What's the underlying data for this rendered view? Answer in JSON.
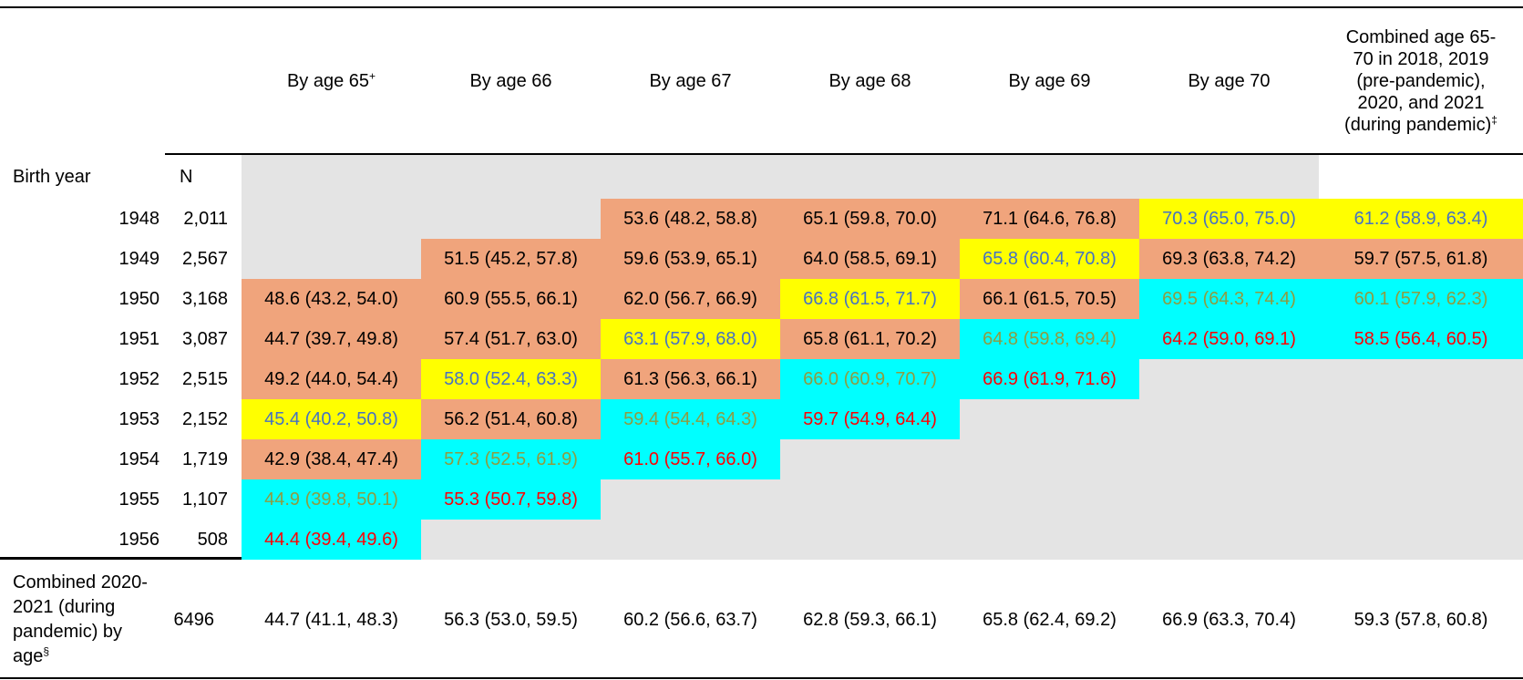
{
  "colors": {
    "cell_orange": "#F0A47C",
    "cell_yellow": "#FFFF00",
    "cell_cyan": "#00FFFF",
    "cell_gray": "#E4E4E4",
    "text_blue": "#4472C4",
    "text_olive": "#8F9B41",
    "text_red": "#FF0000",
    "text_black": "#000000",
    "rule_black": "#000000"
  },
  "chart_data": {
    "type": "table",
    "row_axis_label": "Birth year",
    "n_header": "N",
    "age_columns": [
      {
        "label": "By age 65",
        "sup": "+"
      },
      {
        "label": "By age 66",
        "sup": ""
      },
      {
        "label": "By age 67",
        "sup": ""
      },
      {
        "label": "By age 68",
        "sup": ""
      },
      {
        "label": "By age 69",
        "sup": ""
      },
      {
        "label": "By age 70",
        "sup": ""
      }
    ],
    "combined_column": {
      "lines": [
        "Combined age 65-",
        "70 in 2018, 2019",
        "(pre-pandemic),",
        "2020, and 2021",
        "(during pandemic)"
      ],
      "sup": "‡"
    },
    "rows": [
      {
        "year": "1948",
        "n": "2,011",
        "cells": [
          {
            "text": "",
            "bg": "gray",
            "fg": "black"
          },
          {
            "text": "",
            "bg": "gray",
            "fg": "black"
          },
          {
            "text": "53.6 (48.2, 58.8)",
            "bg": "orange",
            "fg": "black"
          },
          {
            "text": "65.1 (59.8, 70.0)",
            "bg": "orange",
            "fg": "black"
          },
          {
            "text": "71.1 (64.6, 76.8)",
            "bg": "orange",
            "fg": "black"
          },
          {
            "text": "70.3 (65.0, 75.0)",
            "bg": "yellow",
            "fg": "blue"
          },
          {
            "text": "61.2 (58.9, 63.4)",
            "bg": "yellow",
            "fg": "blue"
          }
        ]
      },
      {
        "year": "1949",
        "n": "2,567",
        "cells": [
          {
            "text": "",
            "bg": "gray",
            "fg": "black"
          },
          {
            "text": "51.5 (45.2, 57.8)",
            "bg": "orange",
            "fg": "black"
          },
          {
            "text": "59.6 (53.9, 65.1)",
            "bg": "orange",
            "fg": "black"
          },
          {
            "text": "64.0 (58.5, 69.1)",
            "bg": "orange",
            "fg": "black"
          },
          {
            "text": "65.8 (60.4, 70.8)",
            "bg": "yellow",
            "fg": "blue"
          },
          {
            "text": "69.3 (63.8, 74.2)",
            "bg": "orange",
            "fg": "black"
          },
          {
            "text": "59.7 (57.5, 61.8)",
            "bg": "orange",
            "fg": "black"
          }
        ]
      },
      {
        "year": "1950",
        "n": "3,168",
        "cells": [
          {
            "text": "48.6 (43.2, 54.0)",
            "bg": "orange",
            "fg": "black"
          },
          {
            "text": "60.9 (55.5, 66.1)",
            "bg": "orange",
            "fg": "black"
          },
          {
            "text": "62.0 (56.7, 66.9)",
            "bg": "orange",
            "fg": "black"
          },
          {
            "text": "66.8 (61.5, 71.7)",
            "bg": "yellow",
            "fg": "blue"
          },
          {
            "text": "66.1 (61.5, 70.5)",
            "bg": "orange",
            "fg": "black"
          },
          {
            "text": "69.5 (64.3, 74.4)",
            "bg": "cyan",
            "fg": "olive"
          },
          {
            "text": "60.1 (57.9, 62.3)",
            "bg": "cyan",
            "fg": "olive"
          }
        ]
      },
      {
        "year": "1951",
        "n": "3,087",
        "cells": [
          {
            "text": "44.7 (39.7, 49.8)",
            "bg": "orange",
            "fg": "black"
          },
          {
            "text": "57.4 (51.7, 63.0)",
            "bg": "orange",
            "fg": "black"
          },
          {
            "text": "63.1 (57.9, 68.0)",
            "bg": "yellow",
            "fg": "blue"
          },
          {
            "text": "65.8 (61.1, 70.2)",
            "bg": "orange",
            "fg": "black"
          },
          {
            "text": "64.8 (59.8, 69.4)",
            "bg": "cyan",
            "fg": "olive"
          },
          {
            "text": "64.2 (59.0, 69.1)",
            "bg": "cyan",
            "fg": "red"
          },
          {
            "text": "58.5 (56.4, 60.5)",
            "bg": "cyan",
            "fg": "red"
          }
        ]
      },
      {
        "year": "1952",
        "n": "2,515",
        "cells": [
          {
            "text": "49.2 (44.0, 54.4)",
            "bg": "orange",
            "fg": "black"
          },
          {
            "text": "58.0 (52.4, 63.3)",
            "bg": "yellow",
            "fg": "blue"
          },
          {
            "text": "61.3 (56.3, 66.1)",
            "bg": "orange",
            "fg": "black"
          },
          {
            "text": "66.0 (60.9, 70.7)",
            "bg": "cyan",
            "fg": "olive"
          },
          {
            "text": "66.9 (61.9, 71.6)",
            "bg": "cyan",
            "fg": "red"
          },
          {
            "text": "",
            "bg": "gray",
            "fg": "black"
          },
          {
            "text": "",
            "bg": "gray",
            "fg": "black"
          }
        ]
      },
      {
        "year": "1953",
        "n": "2,152",
        "cells": [
          {
            "text": "45.4 (40.2, 50.8)",
            "bg": "yellow",
            "fg": "blue"
          },
          {
            "text": "56.2 (51.4, 60.8)",
            "bg": "orange",
            "fg": "black"
          },
          {
            "text": "59.4 (54.4, 64.3)",
            "bg": "cyan",
            "fg": "olive"
          },
          {
            "text": "59.7 (54.9, 64.4)",
            "bg": "cyan",
            "fg": "red"
          },
          {
            "text": "",
            "bg": "gray",
            "fg": "black"
          },
          {
            "text": "",
            "bg": "gray",
            "fg": "black"
          },
          {
            "text": "",
            "bg": "gray",
            "fg": "black"
          }
        ]
      },
      {
        "year": "1954",
        "n": "1,719",
        "cells": [
          {
            "text": "42.9 (38.4, 47.4)",
            "bg": "orange",
            "fg": "black"
          },
          {
            "text": "57.3 (52.5, 61.9)",
            "bg": "cyan",
            "fg": "olive"
          },
          {
            "text": "61.0 (55.7, 66.0)",
            "bg": "cyan",
            "fg": "red"
          },
          {
            "text": "",
            "bg": "gray",
            "fg": "black"
          },
          {
            "text": "",
            "bg": "gray",
            "fg": "black"
          },
          {
            "text": "",
            "bg": "gray",
            "fg": "black"
          },
          {
            "text": "",
            "bg": "gray",
            "fg": "black"
          }
        ]
      },
      {
        "year": "1955",
        "n": "1,107",
        "cells": [
          {
            "text": "44.9 (39.8, 50.1)",
            "bg": "cyan",
            "fg": "olive"
          },
          {
            "text": "55.3 (50.7, 59.8)",
            "bg": "cyan",
            "fg": "red"
          },
          {
            "text": "",
            "bg": "gray",
            "fg": "black"
          },
          {
            "text": "",
            "bg": "gray",
            "fg": "black"
          },
          {
            "text": "",
            "bg": "gray",
            "fg": "black"
          },
          {
            "text": "",
            "bg": "gray",
            "fg": "black"
          },
          {
            "text": "",
            "bg": "gray",
            "fg": "black"
          }
        ]
      },
      {
        "year": "1956",
        "n": "508",
        "cells": [
          {
            "text": "44.4 (39.4, 49.6)",
            "bg": "cyan",
            "fg": "red"
          },
          {
            "text": "",
            "bg": "gray",
            "fg": "black"
          },
          {
            "text": "",
            "bg": "gray",
            "fg": "black"
          },
          {
            "text": "",
            "bg": "gray",
            "fg": "black"
          },
          {
            "text": "",
            "bg": "gray",
            "fg": "black"
          },
          {
            "text": "",
            "bg": "gray",
            "fg": "black"
          },
          {
            "text": "",
            "bg": "gray",
            "fg": "black"
          }
        ]
      }
    ],
    "footer": {
      "label_lines": [
        "Combined 2020-",
        "2021 (during",
        "pandemic) by",
        "age"
      ],
      "label_sup": "§",
      "n": "6496",
      "cells": [
        {
          "text": "44.7 (41.1, 48.3)",
          "bg": "white",
          "fg": "black"
        },
        {
          "text": "56.3 (53.0, 59.5)",
          "bg": "white",
          "fg": "black"
        },
        {
          "text": "60.2 (56.6, 63.7)",
          "bg": "white",
          "fg": "black"
        },
        {
          "text": "62.8 (59.3, 66.1)",
          "bg": "white",
          "fg": "black"
        },
        {
          "text": "65.8 (62.4, 69.2)",
          "bg": "white",
          "fg": "black"
        },
        {
          "text": "66.9 (63.3, 70.4)",
          "bg": "white",
          "fg": "black"
        },
        {
          "text": "59.3 (57.8, 60.8)",
          "bg": "white",
          "fg": "black"
        }
      ]
    }
  }
}
